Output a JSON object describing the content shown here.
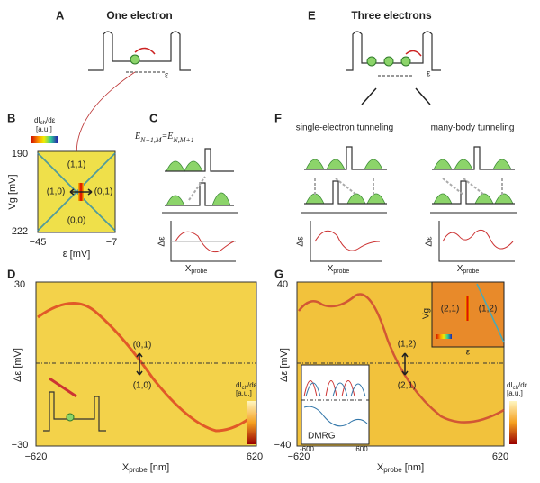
{
  "panels": {
    "A": {
      "label": "A",
      "title": "One electron",
      "epsilon": "ε"
    },
    "E": {
      "label": "E",
      "title": "Three electrons",
      "epsilon": "ε"
    },
    "equation": {
      "e1": "E",
      "s1": "N+1,M",
      "e2": "=E",
      "s2": "N,M+1"
    },
    "B": {
      "label": "B",
      "colorbar": {
        "main": "dI",
        "sub": "ch",
        "rest": "/dε",
        "unit": "[a.u.]"
      },
      "ylabel": "Vg [mV]",
      "yticks": [
        "190",
        "222"
      ],
      "xlabel": "ε [mV]",
      "xticks": [
        "−45",
        "−7"
      ],
      "regions": [
        "(1,1)",
        "(1,0)",
        "(0,1)",
        "(0,0)"
      ]
    },
    "C": {
      "label": "C",
      "minus": "-",
      "ylabel": "Δε",
      "xlabel": {
        "main": "X",
        "sub": "probe"
      }
    },
    "F": {
      "label": "F",
      "left_title": "single-electron tunneling",
      "right_title": "many-body tunneling",
      "minus": [
        "-",
        "-"
      ],
      "ylabel": [
        "Δε",
        "Δε"
      ],
      "xlabel": [
        {
          "main": "X",
          "sub": "probe"
        },
        {
          "main": "X",
          "sub": "probe"
        }
      ]
    },
    "D": {
      "label": "D",
      "yticks": [
        "30",
        "−30"
      ],
      "ylabel": "Δε [mV]",
      "xticks": [
        "−620",
        "620"
      ],
      "xlabel": {
        "main": "X",
        "sub": "probe",
        "rest": " [nm]"
      },
      "states": [
        "(0,1)",
        "(1,0)"
      ],
      "colorbar": {
        "main": "dI",
        "sub": "ch",
        "rest": "/dε",
        "unit": "[a.u.]"
      }
    },
    "G": {
      "label": "G",
      "yticks": [
        "40",
        "−40"
      ],
      "ylabel": "Δε [mV]",
      "xticks": [
        "−620",
        "620"
      ],
      "xlabel": {
        "main": "X",
        "sub": "probe",
        "rest": " [nm]"
      },
      "states": [
        "(1,2)",
        "(2,1)"
      ],
      "inset": {
        "ylabel": "Vg",
        "xlabel": "ε",
        "states": [
          "(2,1)",
          "(1,2)"
        ]
      },
      "dmrg": {
        "label": "DMRG",
        "xticks": [
          "-600",
          "600"
        ]
      },
      "colorbar": {
        "main": "dI",
        "sub": "ch",
        "rest": "/dε",
        "unit": "[a.u.]"
      }
    }
  }
}
